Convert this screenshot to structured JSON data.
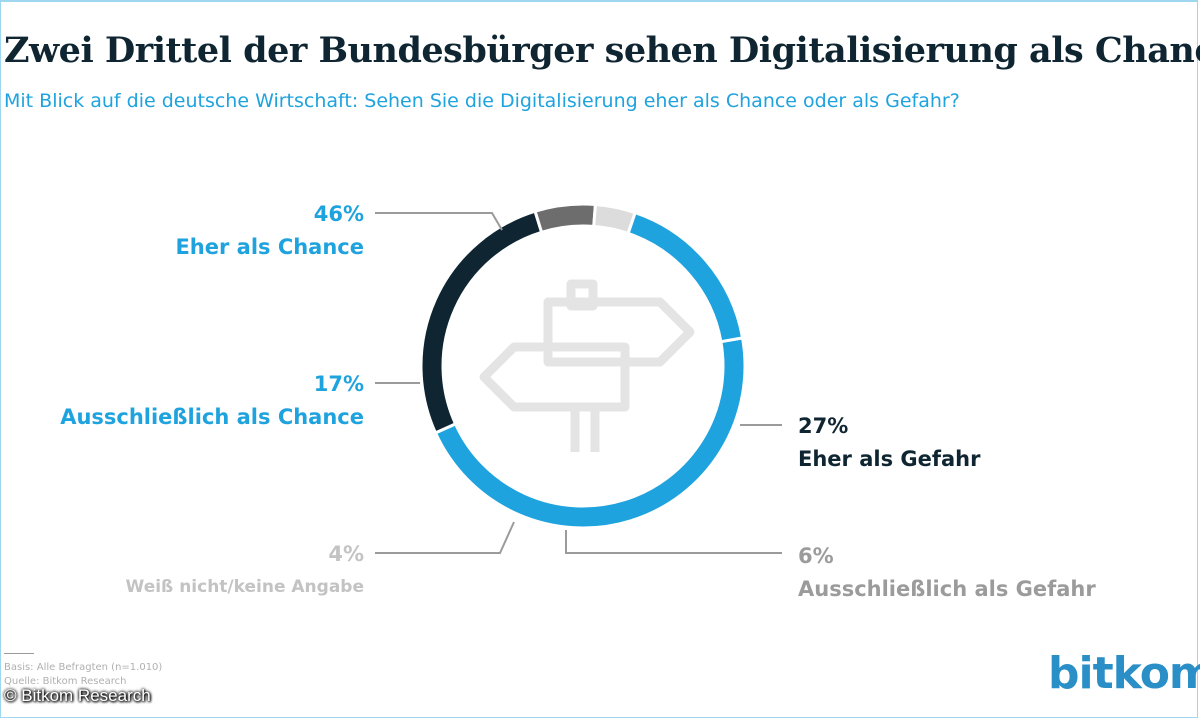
{
  "title": "Zwei Drittel der Bundesbürger sehen Digitalisierung als Chance",
  "subtitle": "Mit Blick auf die deutsche Wirtschaft: Sehen Sie die Digitalisierung eher als Chance oder als Gefahr?",
  "chart_data": {
    "type": "pie",
    "variant": "donut",
    "title": "Zwei Drittel der Bundesbürger sehen Digitalisierung als Chance",
    "subtitle": "Mit Blick auf die deutsche Wirtschaft: Sehen Sie die Digitalisierung eher als Chance oder als Gefahr?",
    "slices": [
      {
        "label": "Eher als Chance",
        "value": 46,
        "display": "46%",
        "color": "#1fa3de"
      },
      {
        "label": "Eher als Gefahr",
        "value": 27,
        "display": "27%",
        "color": "#0f2632"
      },
      {
        "label": "Ausschließlich als Gefahr",
        "value": 6,
        "display": "6%",
        "color": "#6d6d6d"
      },
      {
        "label": "Weiß nicht/keine Angabe",
        "value": 4,
        "display": "4%",
        "color": "#dcdcdc"
      },
      {
        "label": "Ausschließlich als Chance",
        "value": 17,
        "display": "17%",
        "color": "#1fa3de"
      }
    ],
    "center_icon": "signpost-icon"
  },
  "footnote": {
    "base": "Basis: Alle Befragten (n=1.010)",
    "source": "Quelle: Bitkom Research"
  },
  "copyright": "© Bitkom Research",
  "logo": {
    "text": "bitkom"
  }
}
